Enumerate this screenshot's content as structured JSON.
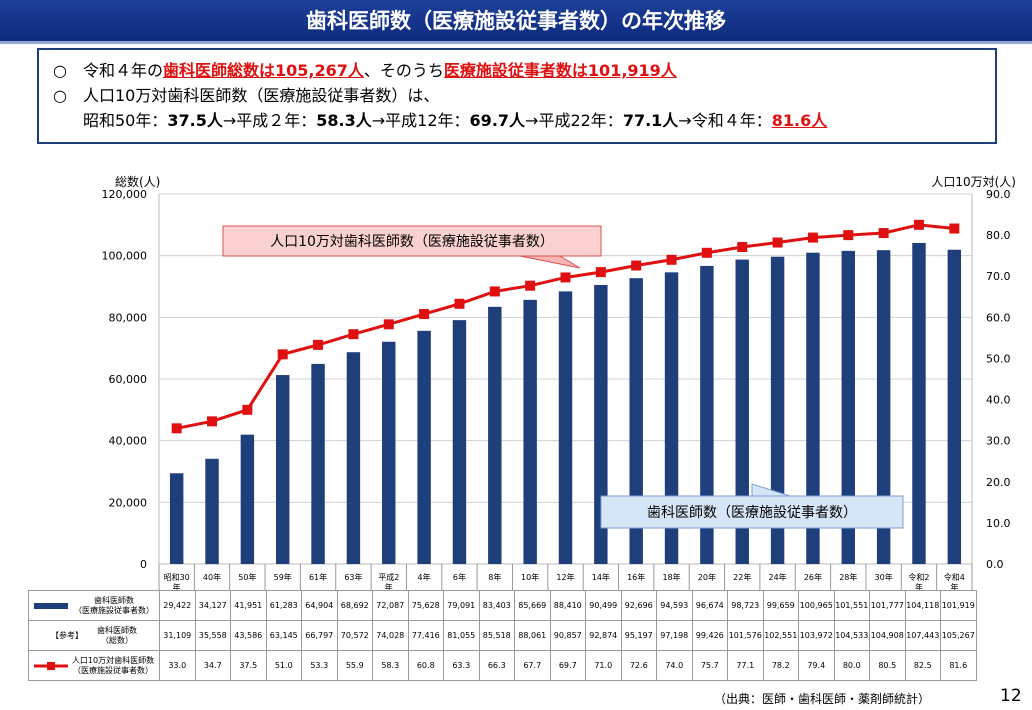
{
  "title": "歯科医師数（医療施設従事者数）の年次推移",
  "summary": {
    "line1_prefix": "令和４年の",
    "line1_total": "歯科医師総数は105,267人",
    "line1_mid": "、そのうち",
    "line1_facility": "医療施設従事者数は101,919人",
    "line2": "人口10万対歯科医師数（医療施設従事者数）は、",
    "line3_parts": [
      {
        "label": "昭和50年：",
        "value": "37.5人"
      },
      {
        "label": "→平成２年：",
        "value": "58.3人"
      },
      {
        "label": "→平成12年：",
        "value": "69.7人"
      },
      {
        "label": "→平成22年：",
        "value": "77.1人"
      },
      {
        "label": "→令和４年：",
        "value": "81.6人"
      }
    ]
  },
  "chart_data": {
    "type": "bar",
    "categories": [
      "昭和30年",
      "40年",
      "50年",
      "59年",
      "61年",
      "63年",
      "平成2年",
      "4年",
      "6年",
      "8年",
      "10年",
      "12年",
      "14年",
      "16年",
      "18年",
      "20年",
      "22年",
      "24年",
      "26年",
      "28年",
      "30年",
      "令和2年",
      "令和4年"
    ],
    "category_lines": [
      [
        "昭和30",
        "年"
      ],
      [
        "40年"
      ],
      [
        "50年"
      ],
      [
        "59年"
      ],
      [
        "61年"
      ],
      [
        "63年"
      ],
      [
        "平成2",
        "年"
      ],
      [
        "4年"
      ],
      [
        "6年"
      ],
      [
        "8年"
      ],
      [
        "10年"
      ],
      [
        "12年"
      ],
      [
        "14年"
      ],
      [
        "16年"
      ],
      [
        "18年"
      ],
      [
        "20年"
      ],
      [
        "22年"
      ],
      [
        "24年"
      ],
      [
        "26年"
      ],
      [
        "28年"
      ],
      [
        "30年"
      ],
      [
        "令和2",
        "年"
      ],
      [
        "令和4",
        "年"
      ]
    ],
    "series": [
      {
        "name": "歯科医師数（医療施設従事者数）",
        "type": "bar",
        "axis": "left",
        "color": "#1f3f7a",
        "values": [
          29422,
          34127,
          41951,
          61283,
          64904,
          68692,
          72087,
          75628,
          79091,
          83403,
          85669,
          88410,
          90499,
          92696,
          94593,
          96674,
          98723,
          99659,
          100965,
          101551,
          101777,
          104118,
          101919
        ]
      },
      {
        "name": "人口10万対歯科医師数（医療施設従事者数）",
        "type": "line",
        "axis": "right",
        "color": "#e01010",
        "values": [
          33.0,
          34.7,
          37.5,
          51.0,
          53.3,
          55.9,
          58.3,
          60.8,
          63.3,
          66.3,
          67.7,
          69.7,
          71.0,
          72.6,
          74.0,
          75.7,
          77.1,
          78.2,
          79.4,
          80.0,
          80.5,
          82.5,
          81.6
        ]
      }
    ],
    "reference_total": [
      31109,
      35558,
      43586,
      63145,
      66797,
      70572,
      74028,
      77416,
      81055,
      85518,
      88061,
      90857,
      92874,
      95197,
      97198,
      99426,
      101576,
      102551,
      103972,
      104533,
      104908,
      107443,
      105267
    ],
    "ylabel_left": "総数(人)",
    "ylabel_right": "人口10万対(人)",
    "ylim_left": [
      0,
      120000
    ],
    "ylim_right": [
      0,
      90
    ],
    "yticks_left": [
      "0",
      "20,000",
      "40,000",
      "60,000",
      "80,000",
      "100,000",
      "120,000"
    ],
    "yticks_right": [
      "0.0",
      "10.0",
      "20.0",
      "30.0",
      "40.0",
      "50.0",
      "60.0",
      "70.0",
      "80.0",
      "90.0"
    ],
    "grid": true,
    "callout_line": "人口10万対歯科医師数（医療施設従事者数）",
    "callout_bar": "歯科医師数（医療施設従事者数）"
  },
  "table": {
    "row1_label": [
      "歯科医師数",
      "（医療施設従事者数）"
    ],
    "row2_tag": "【参考】",
    "row2_label": [
      "歯科医師数",
      "（総数）"
    ],
    "row3_label": [
      "人口10万対歯科医師数",
      "（医療施設従事者数）"
    ],
    "row1_values": [
      "29,422",
      "34,127",
      "41,951",
      "61,283",
      "64,904",
      "68,692",
      "72,087",
      "75,628",
      "79,091",
      "83,403",
      "85,669",
      "88,410",
      "90,499",
      "92,696",
      "94,593",
      "96,674",
      "98,723",
      "99,659",
      "100,965",
      "101,551",
      "101,777",
      "104,118",
      "101,919"
    ],
    "row2_values": [
      "31,109",
      "35,558",
      "43,586",
      "63,145",
      "66,797",
      "70,572",
      "74,028",
      "77,416",
      "81,055",
      "85,518",
      "88,061",
      "90,857",
      "92,874",
      "95,197",
      "97,198",
      "99,426",
      "101,576",
      "102,551",
      "103,972",
      "104,533",
      "104,908",
      "107,443",
      "105,267"
    ],
    "row3_values": [
      "33.0",
      "34.7",
      "37.5",
      "51.0",
      "53.3",
      "55.9",
      "58.3",
      "60.8",
      "63.3",
      "66.3",
      "67.7",
      "69.7",
      "71.0",
      "72.6",
      "74.0",
      "75.7",
      "77.1",
      "78.2",
      "79.4",
      "80.0",
      "80.5",
      "82.5",
      "81.6"
    ]
  },
  "source": "（出典：医師・歯科医師・薬剤師統計）",
  "page_number": "12"
}
